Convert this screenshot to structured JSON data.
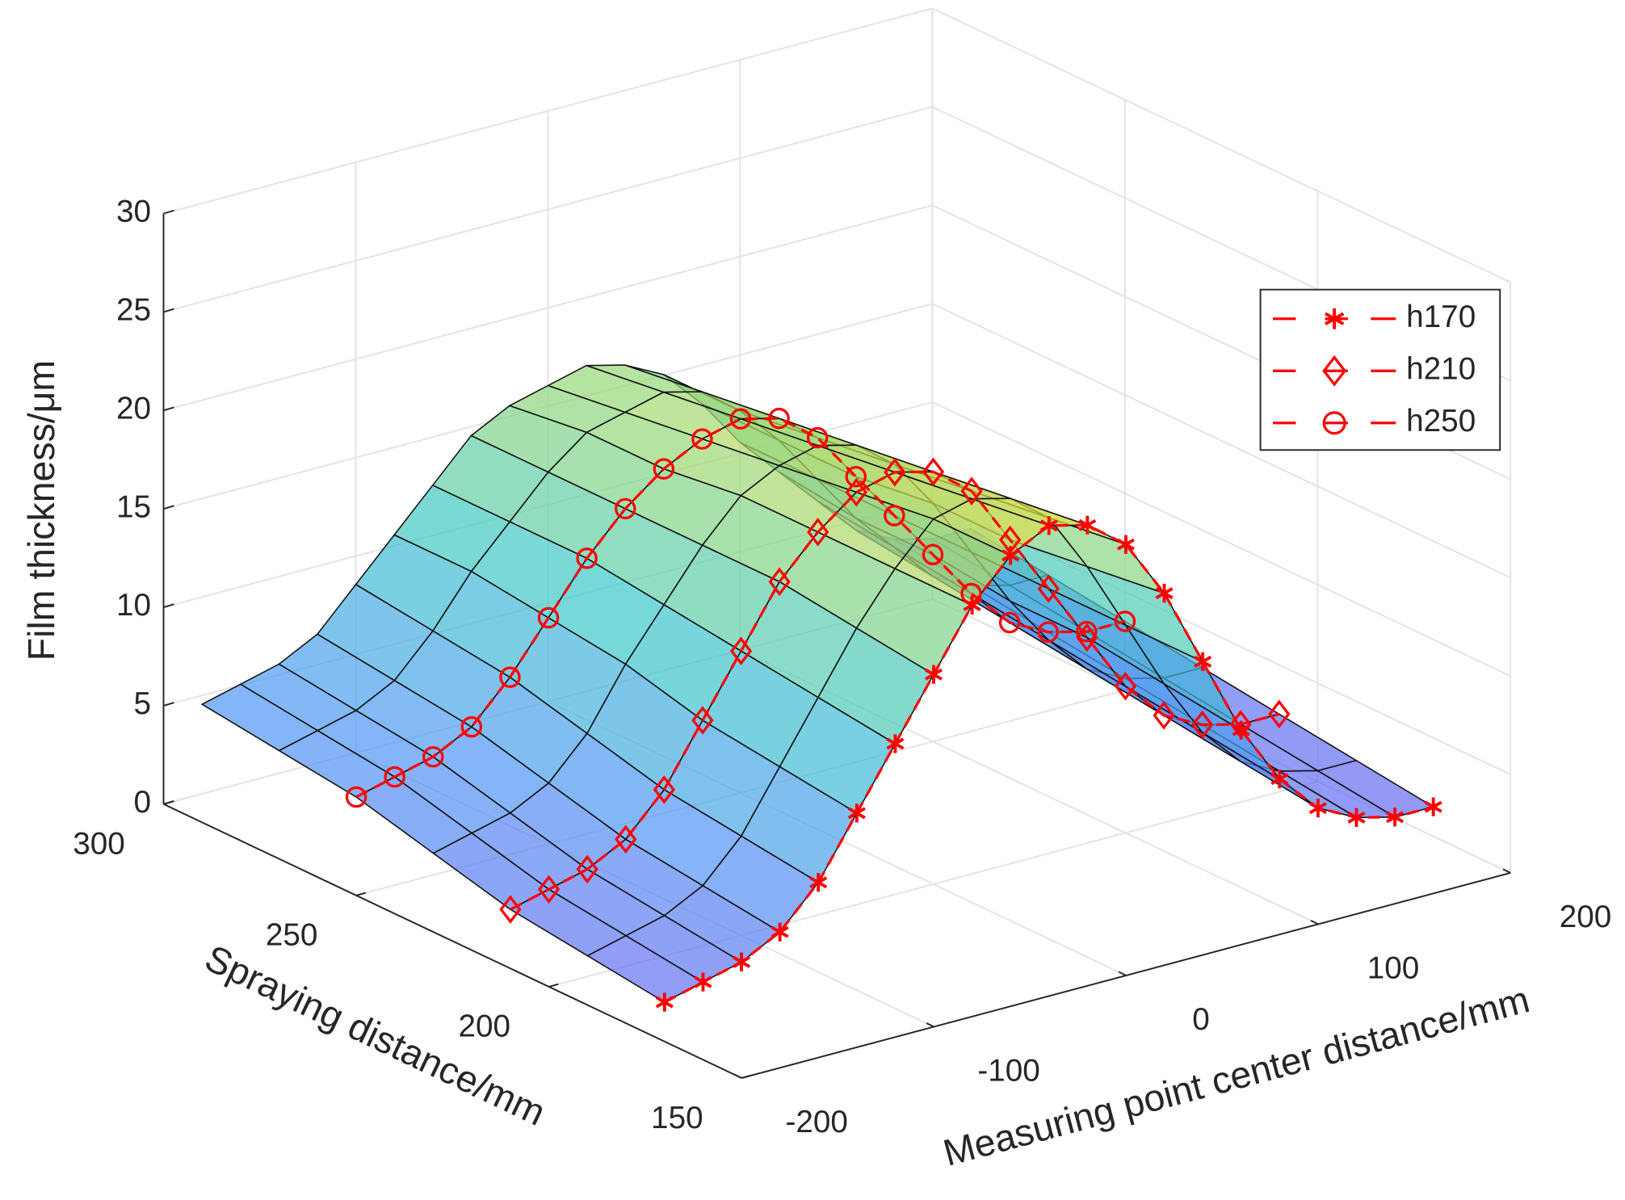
{
  "chart_data": {
    "type": "surface",
    "xlabel": "Measuring point center distance/mm",
    "ylabel": "Spraying distance/mm",
    "zlabel": "Film thickness/μm",
    "xlim": [
      -200,
      200
    ],
    "xticks": [
      -200,
      -100,
      0,
      100,
      200
    ],
    "ylim": [
      150,
      300
    ],
    "yticks": [
      150,
      200,
      250,
      300
    ],
    "zlim": [
      0,
      30
    ],
    "zticks": [
      0,
      5,
      10,
      15,
      20,
      25,
      30
    ],
    "grid": true,
    "legend": "upper right",
    "x": [
      -200,
      -180,
      -160,
      -140,
      -120,
      -100,
      -80,
      -60,
      -40,
      -20,
      0,
      20,
      40,
      60,
      80,
      100,
      120,
      140,
      160,
      180,
      200
    ],
    "surface": {
      "y": [
        170,
        190,
        210,
        230,
        250,
        270,
        290
      ],
      "alpha": 0.7,
      "z": [
        [
          2,
          2.5,
          3,
          4,
          6,
          9,
          12,
          15,
          18,
          20,
          21,
          20.5,
          19,
          16,
          12,
          8,
          5,
          3,
          2,
          1.5,
          1.5
        ],
        [
          2.5,
          3,
          3.5,
          4.5,
          6.5,
          9.5,
          12.5,
          15.5,
          18,
          20,
          20.5,
          20,
          18.5,
          15.5,
          12,
          8.5,
          5.5,
          3.5,
          2.5,
          2,
          2
        ],
        [
          3,
          3.5,
          4,
          5,
          7,
          10,
          13,
          16,
          18,
          19.5,
          20,
          19.5,
          18,
          15,
          12,
          9,
          6,
          4,
          3,
          2.5,
          2.5
        ],
        [
          4,
          4.5,
          5,
          6,
          8,
          11,
          13.5,
          16,
          18,
          19,
          19.5,
          19,
          17.5,
          15,
          12,
          9,
          6.5,
          4.5,
          3.5,
          3,
          3
        ],
        [
          5,
          5.5,
          6,
          7,
          9,
          11.5,
          14,
          16,
          17.5,
          18.5,
          19,
          18.5,
          17,
          14.5,
          12,
          9.5,
          7,
          5,
          4,
          3.5,
          3.5
        ],
        [
          5.5,
          6,
          6.5,
          7.5,
          9.5,
          12,
          14,
          16,
          17.5,
          18,
          18.5,
          18,
          16.5,
          14.5,
          12,
          9.5,
          7.5,
          5.5,
          4.5,
          4,
          4
        ],
        [
          6,
          6.5,
          7,
          8,
          10,
          12,
          14,
          16,
          17,
          17.5,
          18,
          17.5,
          16.5,
          14.5,
          12,
          10,
          8,
          6,
          5,
          4.5,
          4.5
        ]
      ]
    },
    "series": [
      {
        "name": "h170",
        "color": "#ff0000",
        "marker": "asterisk",
        "y": 170,
        "values": [
          2,
          2.5,
          3,
          4,
          6,
          9,
          12,
          15,
          18,
          20,
          21,
          20.5,
          19,
          16,
          12,
          8,
          5,
          3,
          2,
          1.5,
          1.5
        ]
      },
      {
        "name": "h210",
        "color": "#ff0000",
        "marker": "diamond",
        "y": 210,
        "values": [
          3,
          3.5,
          4,
          5,
          7,
          10,
          13,
          16,
          18,
          19.5,
          20,
          19.5,
          18,
          15,
          12,
          9,
          6,
          4,
          3,
          2.5,
          2.5
        ]
      },
      {
        "name": "h250",
        "color": "#ff0000",
        "marker": "circle",
        "y": 250,
        "values": [
          5,
          5.5,
          6,
          7,
          9,
          11.5,
          14,
          16,
          17.5,
          18.5,
          19,
          18.5,
          17,
          14.5,
          12,
          9.5,
          7,
          5,
          4,
          3.5,
          3.5
        ]
      }
    ]
  }
}
